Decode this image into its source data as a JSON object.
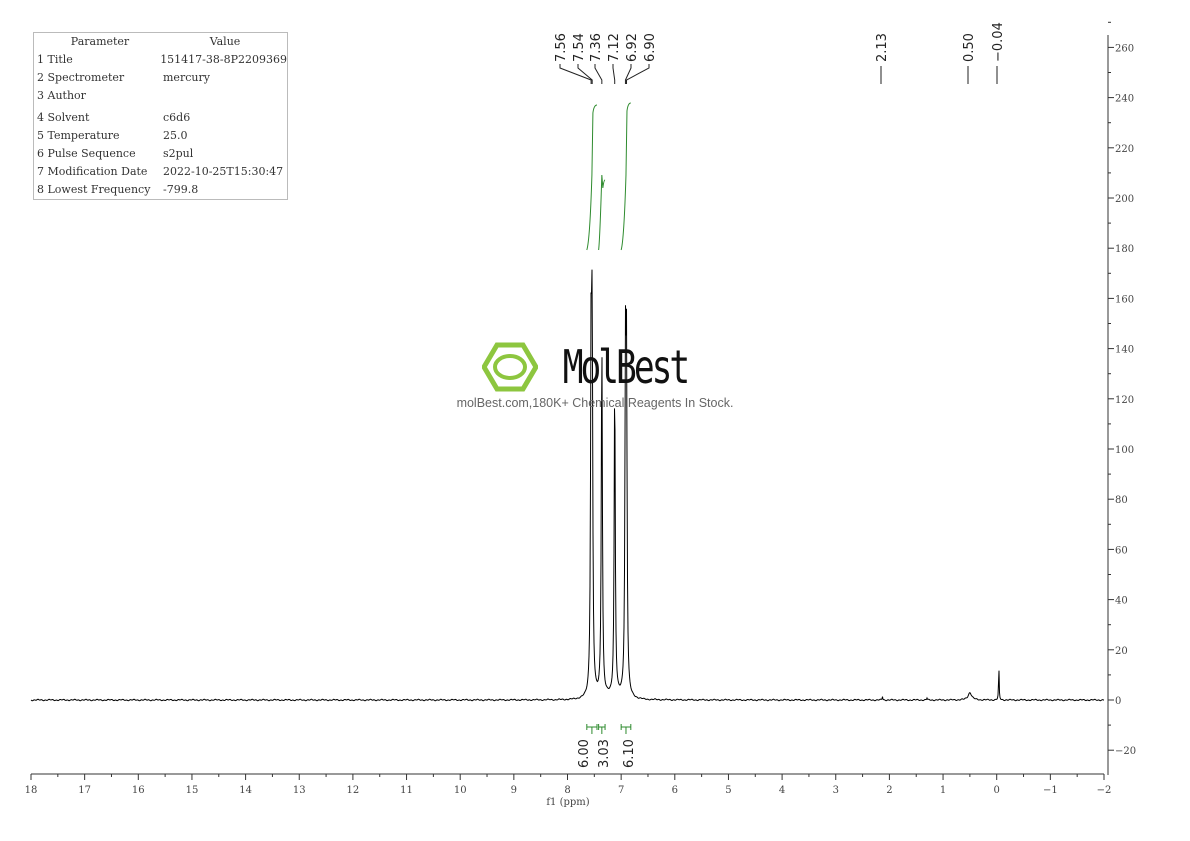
{
  "parameters": {
    "header": [
      "Parameter",
      "Value"
    ],
    "rows": [
      [
        "1 Title",
        "151417-38-8P2209369"
      ],
      [
        "2 Spectrometer",
        "mercury"
      ],
      [
        "3 Author",
        ""
      ],
      [
        "4 Solvent",
        "c6d6"
      ],
      [
        "5 Temperature",
        "25.0"
      ],
      [
        "6 Pulse Sequence",
        "s2pul"
      ],
      [
        "7 Modification Date",
        "2022-10-25T15:30:47"
      ],
      [
        "8 Lowest Frequency",
        "-799.8"
      ]
    ]
  },
  "watermark": {
    "brand": "MolBest",
    "tagline": "molBest.com,180K+ Chemical Reagents In Stock.",
    "logo_color": "#8dc63f"
  },
  "chart_data": {
    "type": "line",
    "xlabel": "f1 (ppm)",
    "ylabel": "",
    "xlim": [
      18,
      -2
    ],
    "ylim": [
      -28,
      265
    ],
    "x_ticks": [
      18,
      17,
      16,
      15,
      14,
      13,
      12,
      11,
      10,
      9,
      8,
      7,
      6,
      5,
      4,
      3,
      2,
      1,
      0,
      -1,
      -2
    ],
    "y_ticks": [
      -20,
      0,
      20,
      40,
      60,
      80,
      100,
      120,
      140,
      160,
      180,
      200,
      220,
      240,
      260
    ],
    "line_color": "#000000",
    "integral_color": "#2e8b2e",
    "peaks": [
      {
        "ppm": 7.56,
        "height": 134
      },
      {
        "ppm": 7.54,
        "height": 134
      },
      {
        "ppm": 7.36,
        "height": 143
      },
      {
        "ppm": 7.12,
        "height": 126
      },
      {
        "ppm": 6.92,
        "height": 122
      },
      {
        "ppm": 6.9,
        "height": 122
      },
      {
        "ppm": 2.13,
        "height": 1.5
      },
      {
        "ppm": 1.3,
        "height": 0.8
      },
      {
        "ppm": 0.5,
        "height": 3
      },
      {
        "ppm": -0.04,
        "height": 14
      }
    ],
    "peak_labels": [
      "7.56",
      "7.54",
      "7.36",
      "7.12",
      "6.92",
      "6.90",
      "2.13",
      "0.50",
      "-0.04"
    ],
    "integrals": [
      {
        "from": 7.64,
        "to": 7.45,
        "value": "6.00"
      },
      {
        "from": 7.42,
        "to": 7.3,
        "value": "3.03"
      },
      {
        "from": 7.0,
        "to": 6.82,
        "value": "6.10"
      }
    ]
  }
}
